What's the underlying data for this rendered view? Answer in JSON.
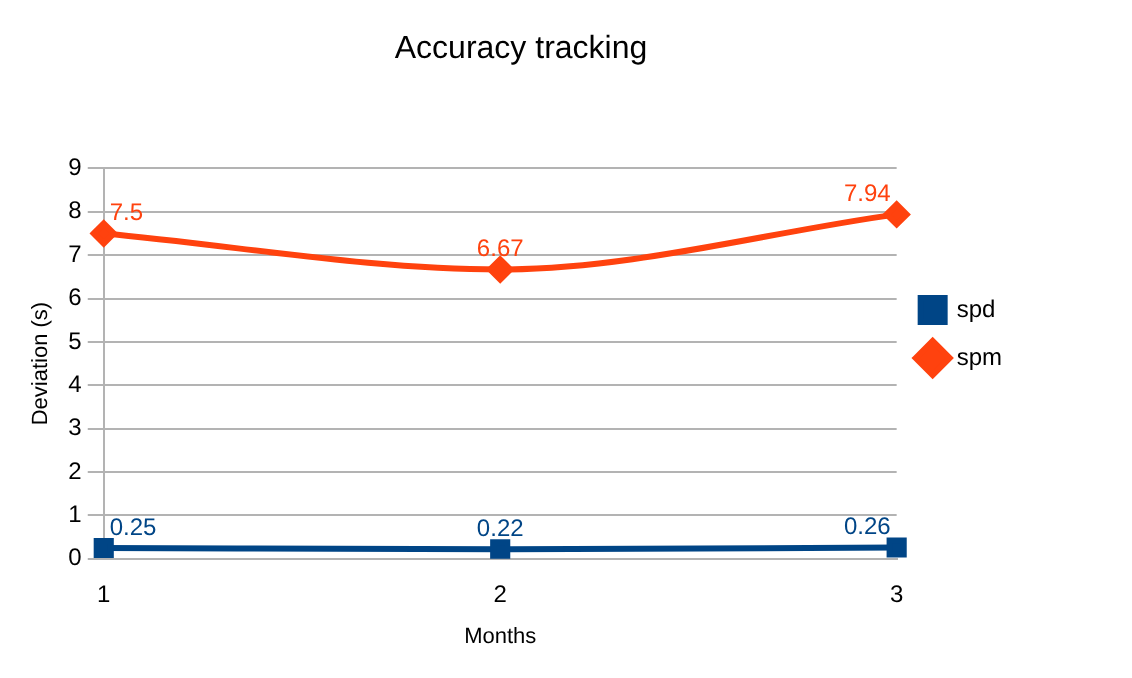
{
  "chart_data": {
    "type": "line",
    "title": "Accuracy tracking",
    "xlabel": "Months",
    "ylabel": "Deviation (s)",
    "categories": [
      "1",
      "2",
      "3"
    ],
    "series": [
      {
        "name": "spd",
        "color": "#004586",
        "values": [
          0.25,
          0.22,
          0.26
        ],
        "marker": "square"
      },
      {
        "name": "spm",
        "color": "#ff420e",
        "values": [
          7.5,
          6.67,
          7.94
        ],
        "marker": "diamond"
      }
    ],
    "ylim": [
      0,
      9
    ],
    "yticks": [
      0,
      1,
      2,
      3,
      4,
      5,
      6,
      7,
      8,
      9
    ],
    "grid": "y",
    "legend": "right",
    "data_labels": true
  }
}
